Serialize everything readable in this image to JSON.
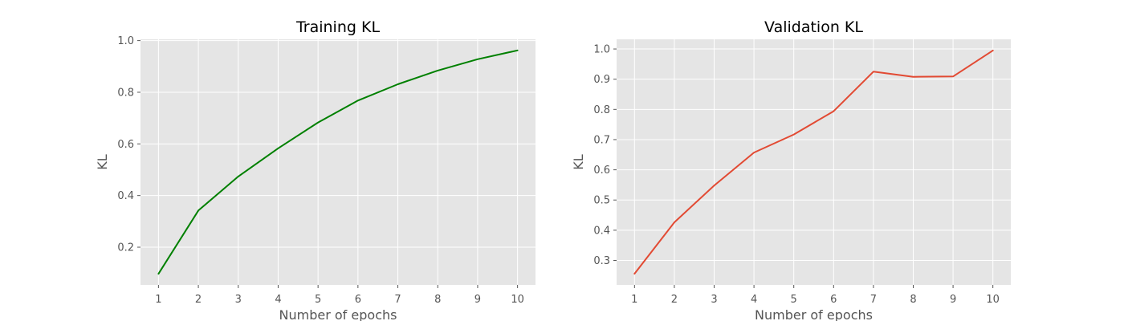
{
  "chart_data": [
    {
      "type": "line",
      "title": "Training KL",
      "xlabel": "Number of epochs",
      "ylabel": "KL",
      "x": [
        1,
        2,
        3,
        4,
        5,
        6,
        7,
        8,
        9,
        10
      ],
      "series": [
        {
          "name": "Training KL",
          "color": "#008000",
          "values": [
            0.097,
            0.342,
            0.474,
            0.583,
            0.683,
            0.768,
            0.831,
            0.884,
            0.928,
            0.962
          ]
        }
      ],
      "xlim": [
        0.55,
        10.45
      ],
      "ylim": [
        0.054,
        1.005
      ],
      "xticks": [
        1,
        2,
        3,
        4,
        5,
        6,
        7,
        8,
        9,
        10
      ],
      "yticks": [
        0.2,
        0.4,
        0.6,
        0.8,
        1.0
      ],
      "ytick_labels": [
        "0.2",
        "0.4",
        "0.6",
        "0.8",
        "1.0"
      ],
      "grid": true
    },
    {
      "type": "line",
      "title": "Validation KL",
      "xlabel": "Number of epochs",
      "ylabel": "KL",
      "x": [
        1,
        2,
        3,
        4,
        5,
        6,
        7,
        8,
        9,
        10
      ],
      "series": [
        {
          "name": "Validation KL",
          "color": "#e24a33",
          "values": [
            0.256,
            0.426,
            0.548,
            0.657,
            0.717,
            0.794,
            0.925,
            0.908,
            0.909,
            0.995
          ]
        }
      ],
      "xlim": [
        0.55,
        10.45
      ],
      "ylim": [
        0.219,
        1.032
      ],
      "xticks": [
        1,
        2,
        3,
        4,
        5,
        6,
        7,
        8,
        9,
        10
      ],
      "yticks": [
        0.3,
        0.4,
        0.5,
        0.6,
        0.7,
        0.8,
        0.9,
        1.0
      ],
      "ytick_labels": [
        "0.3",
        "0.4",
        "0.5",
        "0.6",
        "0.7",
        "0.8",
        "0.9",
        "1.0"
      ],
      "grid": true
    }
  ]
}
